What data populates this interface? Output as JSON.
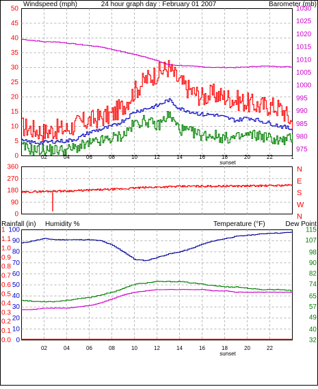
{
  "colors": {
    "wind": "#ff0000",
    "gust": "#ff0000",
    "avg": "#0000c0",
    "low": "#008000",
    "baro": "#cc00cc",
    "dir": "#ff0000",
    "hum": "#000099",
    "temp": "#008000",
    "dew": "#cc00cc",
    "rain": "#ff0000",
    "grid": "#b4b4b4",
    "axisBlue": "#0000cc",
    "axisGreen": "#008000",
    "axisMagenta": "#cc00cc",
    "text": "#000000"
  },
  "chart_data": [
    {
      "type": "line",
      "title": "24 hour graph day : February 01 2007",
      "left_axis_label": "Windspeed (mph)",
      "right_axis_label": "Barometer (mb)",
      "ylim": [
        0,
        50
      ],
      "y2lim": [
        972.5,
        1030
      ],
      "yticks": [
        0,
        5,
        10,
        15,
        20,
        25,
        30,
        35,
        40,
        45,
        50
      ],
      "y2ticks": [
        975,
        980,
        985,
        990,
        995,
        1000,
        1005,
        1010,
        1015,
        1020,
        1025,
        1030
      ],
      "xticks": [
        "02",
        "04",
        "06",
        "08",
        "10",
        "12",
        "14",
        "16",
        "18",
        "20",
        "22"
      ],
      "x_note": "sunset",
      "x": [
        0,
        1,
        2,
        3,
        4,
        5,
        6,
        7,
        8,
        9,
        10,
        11,
        12,
        13,
        14,
        15,
        16,
        17,
        18,
        19,
        20,
        21,
        22,
        23,
        24
      ],
      "series": [
        {
          "name": "gust",
          "values": [
            10,
            9,
            8,
            9,
            9,
            11,
            12,
            13,
            14,
            17,
            22,
            26,
            28,
            30,
            25,
            22,
            20,
            21,
            20,
            19,
            18,
            17,
            17,
            16,
            11
          ]
        },
        {
          "name": "avg",
          "values": [
            5,
            4.5,
            4.5,
            5,
            5,
            6,
            8,
            9,
            10,
            12,
            15,
            16,
            17,
            19,
            16,
            15,
            14,
            14,
            13,
            12,
            13,
            12,
            11,
            10,
            9
          ]
        },
        {
          "name": "low",
          "values": [
            3,
            2,
            2,
            2,
            2,
            3,
            4,
            5,
            6,
            7,
            11,
            12,
            10,
            14,
            9,
            8,
            7,
            7,
            6,
            6,
            7,
            7,
            6,
            5,
            6
          ]
        },
        {
          "name": "barometer",
          "values": [
            1018,
            1017.5,
            1017,
            1017,
            1016.5,
            1016,
            1015.5,
            1015,
            1014,
            1013,
            1012,
            1011,
            1009.5,
            1008,
            1007.8,
            1007.5,
            1007.2,
            1007,
            1007,
            1007,
            1007.2,
            1007.5,
            1007.5,
            1007.3,
            1007.2
          ]
        }
      ]
    },
    {
      "type": "line",
      "ylim": [
        0,
        360
      ],
      "yticks": [
        0,
        90,
        180,
        270,
        360
      ],
      "right_labels": [
        "N",
        "W",
        "S",
        "E",
        "N"
      ],
      "x": [
        0,
        1,
        2,
        3,
        4,
        5,
        6,
        7,
        8,
        9,
        10,
        11,
        12,
        13,
        14,
        15,
        16,
        17,
        18,
        19,
        20,
        21,
        22,
        23,
        24
      ],
      "series": [
        {
          "name": "wind direction",
          "values": [
            165,
            170,
            172,
            175,
            175,
            178,
            182,
            185,
            188,
            192,
            198,
            202,
            205,
            208,
            210,
            212,
            212,
            212,
            213,
            213,
            214,
            215,
            216,
            218,
            220
          ]
        }
      ]
    },
    {
      "type": "line",
      "left_labels": [
        "Rainfall (in)",
        "Humidity %"
      ],
      "right_labels": [
        "Temperature (°F)",
        "Dew Point"
      ],
      "humidity_ticks": [
        0,
        10,
        20,
        30,
        40,
        50,
        60,
        70,
        80,
        90,
        100
      ],
      "rain_ticks": [
        "0.0",
        "0.1",
        "0.2",
        "0.3",
        "0.4",
        "0.5",
        "0.6",
        "0.7",
        "0.8",
        "0.9",
        "1.0",
        "1.1",
        "1"
      ],
      "temp_ticks": [
        32,
        40,
        49,
        57,
        65,
        74,
        82,
        90,
        98,
        107,
        115
      ],
      "ylim_humidity": [
        0,
        100
      ],
      "ylim_temp": [
        32,
        115
      ],
      "xticks": [
        "02",
        "04",
        "06",
        "08",
        "10",
        "12",
        "14",
        "16",
        "18",
        "20",
        "22"
      ],
      "x_note": "sunset",
      "x": [
        0,
        1,
        2,
        3,
        4,
        5,
        6,
        7,
        8,
        9,
        10,
        11,
        12,
        13,
        14,
        15,
        16,
        17,
        18,
        19,
        20,
        21,
        22,
        23,
        24
      ],
      "series": [
        {
          "name": "humidity",
          "values": [
            88,
            90,
            92,
            91,
            91,
            91,
            91,
            90,
            86,
            80,
            73,
            72,
            75,
            78,
            80,
            83,
            87,
            90,
            92,
            94,
            95,
            96,
            97,
            97,
            98
          ]
        },
        {
          "name": "temperature",
          "values": [
            62,
            61,
            61,
            61,
            62,
            63,
            64,
            66,
            68,
            71,
            74,
            75,
            76,
            76,
            76,
            75,
            74,
            73,
            72,
            72,
            71,
            70,
            70,
            70,
            69
          ]
        },
        {
          "name": "dew point",
          "values": [
            55,
            55,
            56,
            56,
            56,
            57,
            58,
            60,
            63,
            66,
            68,
            69,
            70,
            70,
            70,
            70,
            70,
            69,
            69,
            68,
            68,
            68,
            68,
            68,
            68
          ]
        },
        {
          "name": "rainfall",
          "values": [
            0,
            0,
            0,
            0,
            0,
            0,
            0,
            0,
            0,
            0,
            0,
            0,
            0,
            0,
            0,
            0,
            0,
            0,
            0,
            0,
            0,
            0,
            0,
            0,
            0
          ]
        }
      ]
    }
  ]
}
